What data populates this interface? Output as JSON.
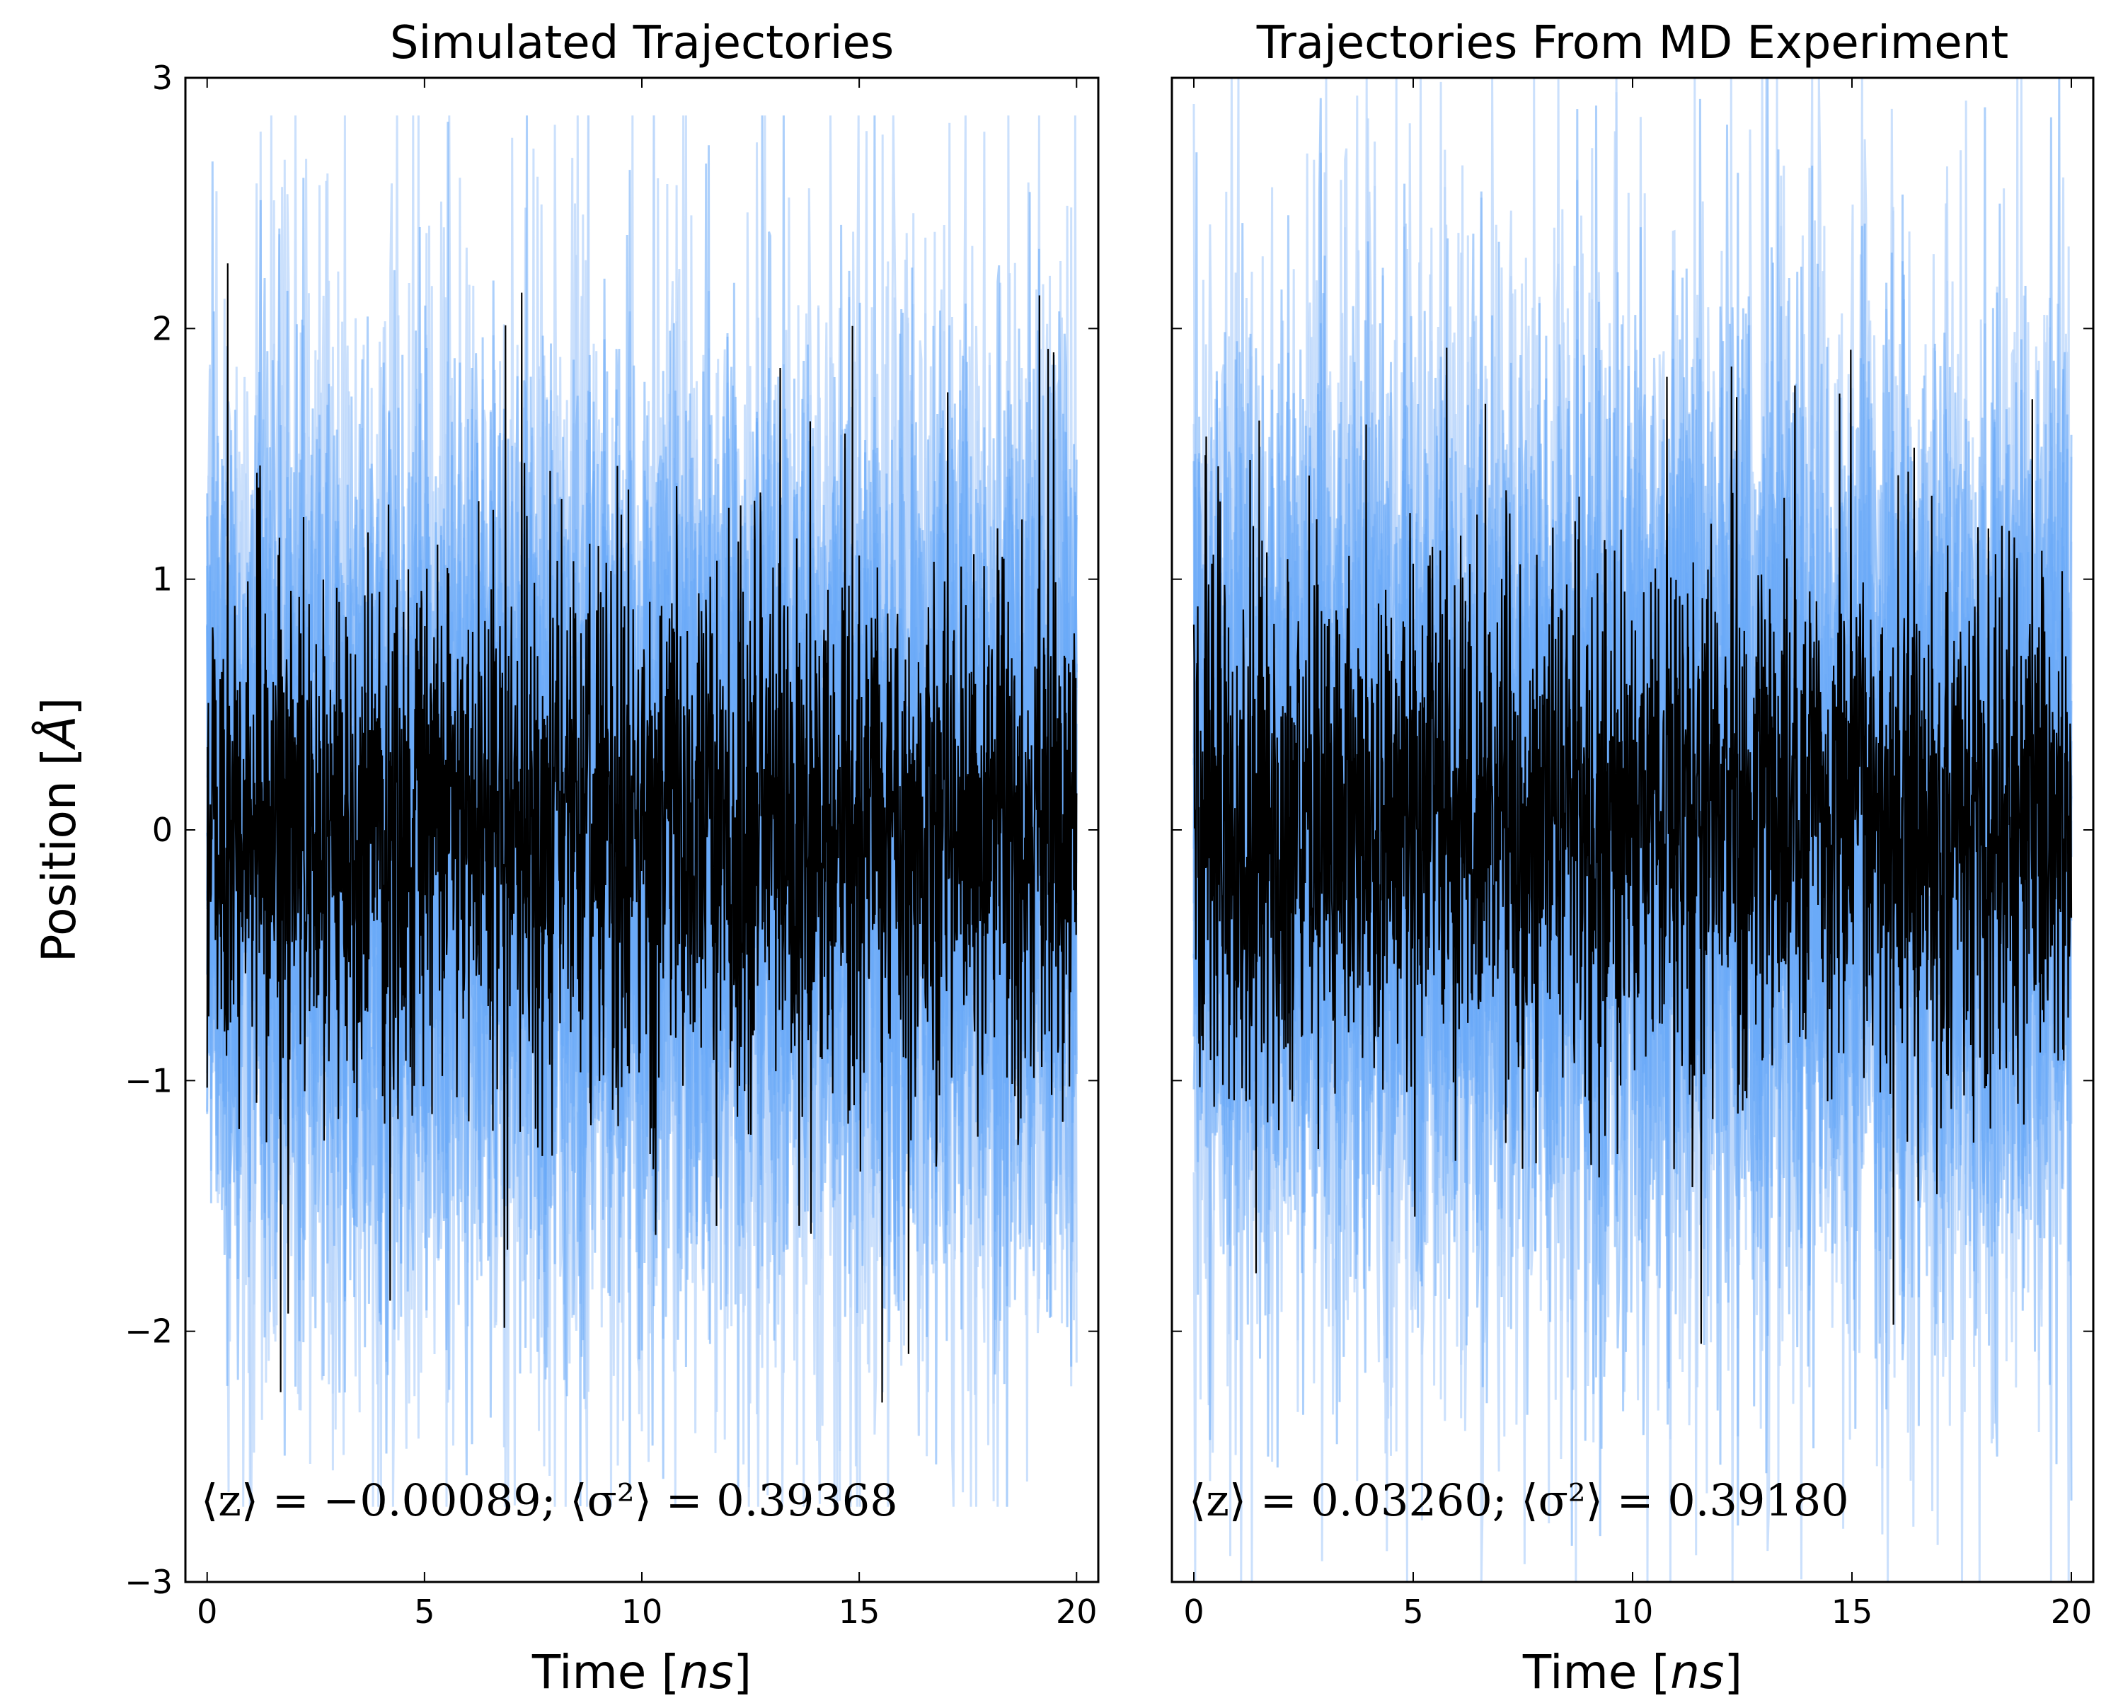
{
  "chart_data": [
    {
      "type": "line",
      "title": "Simulated Trajectories",
      "xlabel": "Time [ns]",
      "ylabel": "Position [Å]",
      "xlim": [
        -0.5,
        20.5
      ],
      "ylim": [
        -3,
        3
      ],
      "xticks": [
        0,
        5,
        10,
        15,
        20
      ],
      "yticks": [
        -3,
        -2,
        -1,
        0,
        1,
        2,
        3
      ],
      "xtick_labels": [
        "0",
        "5",
        "10",
        "15",
        "20"
      ],
      "ytick_labels": [
        "−3",
        "−2",
        "−1",
        "0",
        "1",
        "2",
        "3"
      ],
      "annotation": "⟨z⟩ = −0.00089; ⟨σ²⟩ = 0.39368",
      "mean": -0.00089,
      "variance": 0.39368,
      "grid": false,
      "series": [
        {
          "role": "ensemble",
          "color": "#6aa9f7",
          "envelope_upper": 1.7,
          "envelope_lower": -1.7,
          "extreme_max": 2.85,
          "extreme_min": -2.7
        },
        {
          "role": "single",
          "color": "#000000",
          "envelope_upper": 1.0,
          "envelope_lower": -1.0,
          "extreme_max": 2.3,
          "extreme_min": -2.4
        }
      ]
    },
    {
      "type": "line",
      "title": "Trajectories From MD Experiment",
      "xlabel": "Time [ns]",
      "xlim": [
        -0.5,
        20.5
      ],
      "ylim": [
        -3,
        3
      ],
      "xticks": [
        0,
        5,
        10,
        15,
        20
      ],
      "yticks": [
        -3,
        -2,
        -1,
        0,
        1,
        2,
        3
      ],
      "xtick_labels": [
        "0",
        "5",
        "10",
        "15",
        "20"
      ],
      "annotation": "⟨z⟩ = 0.03260; ⟨σ²⟩ = 0.39180",
      "mean": 0.0326,
      "variance": 0.3918,
      "grid": false,
      "series": [
        {
          "role": "ensemble",
          "color": "#6aa9f7",
          "envelope_upper": 1.75,
          "envelope_lower": -1.75,
          "extreme_max": 3.0,
          "extreme_min": -3.0
        },
        {
          "role": "single",
          "color": "#000000",
          "envelope_upper": 1.0,
          "envelope_lower": -1.0,
          "extreme_max": 2.05,
          "extreme_min": -2.05
        }
      ]
    }
  ],
  "colors": {
    "ensemble": "#6aa9f7",
    "ensemble_light": "#b9d6fb",
    "single": "#000000"
  }
}
